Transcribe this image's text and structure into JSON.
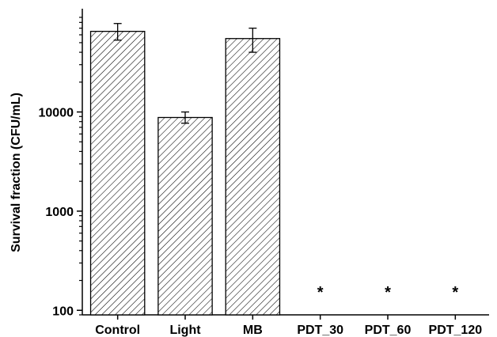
{
  "chart_data": {
    "type": "bar",
    "ylabel": "Survival fraction (CFU/mL)",
    "xlabel": "",
    "y_scale": "log",
    "ylim": [
      90,
      110000
    ],
    "y_ticks": [
      100,
      1000,
      10000
    ],
    "y_tick_labels": [
      "100",
      "1000",
      "10000"
    ],
    "categories": [
      "Control",
      "Light",
      "MB",
      "PDT_30",
      "PDT_60",
      "PDT_120"
    ],
    "values": [
      65000,
      8800,
      55000,
      null,
      null,
      null
    ],
    "error_bars": [
      {
        "low": 53000,
        "high": 78000
      },
      {
        "low": 7700,
        "high": 10000
      },
      {
        "low": 40000,
        "high": 70000
      },
      null,
      null,
      null
    ],
    "markers": [
      "",
      "",
      "",
      "*",
      "*",
      "*"
    ],
    "bar_fill": "hatched",
    "colors": {
      "bar_stroke": "#000000",
      "hatch": "#000000",
      "background": "#ffffff"
    }
  }
}
